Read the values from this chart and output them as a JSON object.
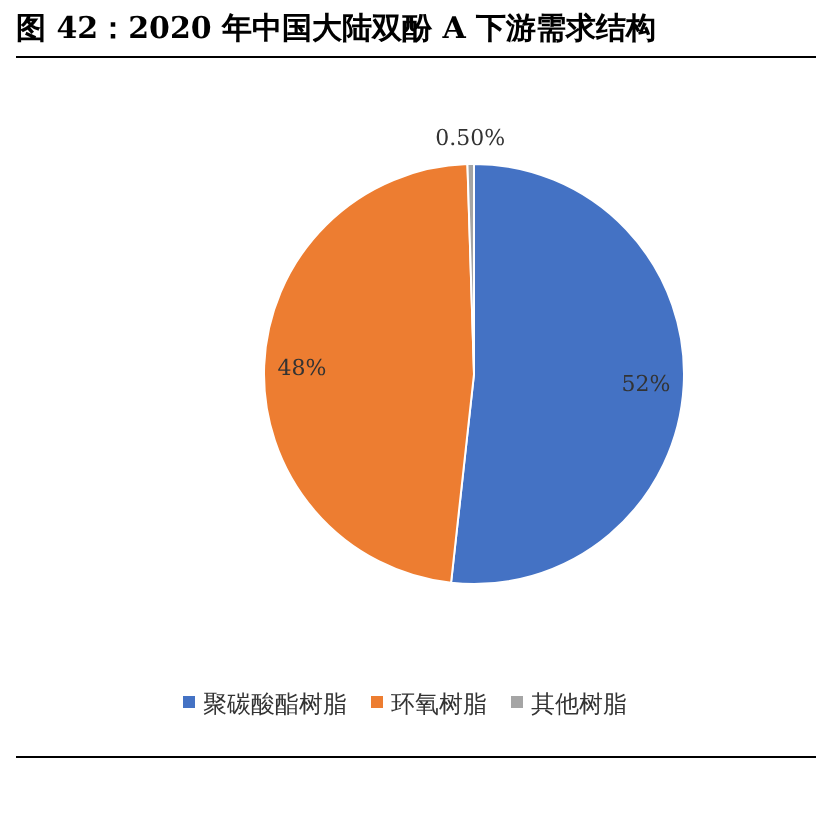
{
  "chart_data": {
    "type": "pie",
    "title": "图 42：2020 年中国大陆双酚 A 下游需求结构",
    "categories": [
      "聚碳酸酯树脂",
      "环氧树脂",
      "其他树脂"
    ],
    "values": [
      52,
      48,
      0.5
    ],
    "value_labels": [
      "52%",
      "48%",
      "0.50%"
    ],
    "colors": [
      "#4472c4",
      "#ed7d31",
      "#a5a5a5"
    ],
    "legend": "bottom"
  }
}
